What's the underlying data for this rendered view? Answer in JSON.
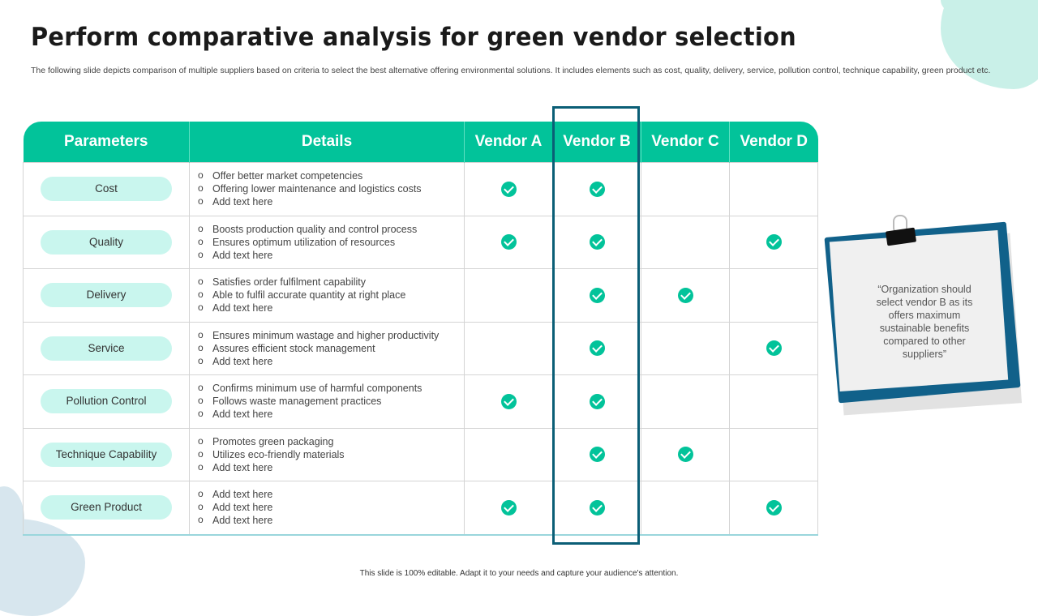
{
  "title": "Perform comparative analysis for green vendor selection",
  "subtitle": "The following slide depicts comparison of multiple suppliers based on criteria to select the best alternative offering environmental solutions. It includes elements such as cost, quality, delivery, service, pollution control, technique capability, green product etc.",
  "table": {
    "headers": [
      "Parameters",
      "Details",
      "Vendor A",
      "Vendor B",
      "Vendor C",
      "Vendor D"
    ],
    "rows": [
      {
        "parameter": "Cost",
        "details": [
          "Offer better market competencies",
          "Offering lower maintenance and logistics costs",
          "Add text here"
        ],
        "checks": [
          true,
          true,
          false,
          false
        ]
      },
      {
        "parameter": "Quality",
        "details": [
          "Boosts production quality and control process",
          "Ensures optimum utilization of resources",
          "Add text here"
        ],
        "checks": [
          true,
          true,
          false,
          true
        ]
      },
      {
        "parameter": "Delivery",
        "details": [
          "Satisfies order fulfilment capability",
          "Able to fulfil accurate quantity at right place",
          "Add text here"
        ],
        "checks": [
          false,
          true,
          true,
          false
        ]
      },
      {
        "parameter": "Service",
        "details": [
          "Ensures minimum wastage and higher productivity",
          "Assures efficient stock management",
          "Add text here"
        ],
        "checks": [
          false,
          true,
          false,
          true
        ]
      },
      {
        "parameter": "Pollution Control",
        "details": [
          "Confirms minimum use of harmful components",
          "Follows waste management practices",
          "Add text here"
        ],
        "checks": [
          true,
          true,
          false,
          false
        ]
      },
      {
        "parameter": "Technique Capability",
        "details": [
          "Promotes green packaging",
          "Utilizes eco-friendly materials",
          "Add text here"
        ],
        "checks": [
          false,
          true,
          true,
          false
        ]
      },
      {
        "parameter": "Green Product",
        "details": [
          "Add text here",
          "Add text here",
          "Add text here"
        ],
        "checks": [
          true,
          true,
          false,
          true
        ]
      }
    ]
  },
  "note": {
    "text": "“Organization should select vendor B as its offers maximum sustainable benefits compared to other suppliers”"
  },
  "footer": "This slide is 100% editable. Adapt it to your needs and capture your audience's attention.",
  "colors": {
    "accent": "#02c39a",
    "pill": "#c9f6ee",
    "highlight": "#0b5e76",
    "note_back": "#11618a"
  },
  "icons": {
    "check": "check-circle-icon",
    "clip": "binder-clip-icon"
  }
}
